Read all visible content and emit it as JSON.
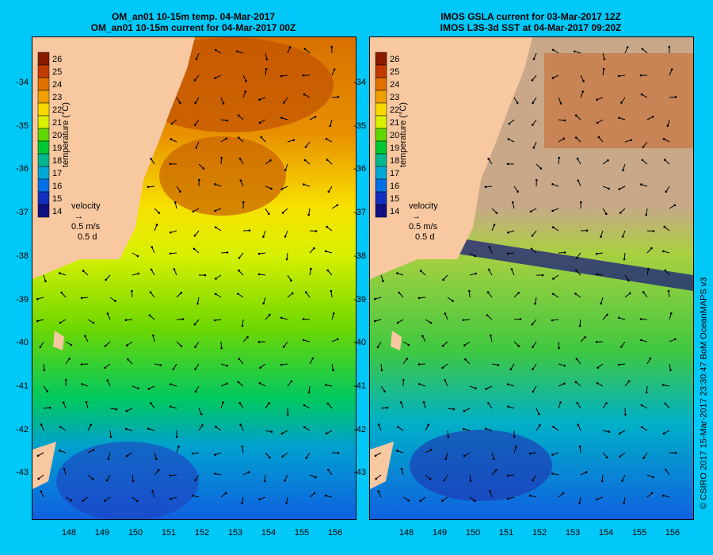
{
  "left_panel": {
    "title_line1": "OM_an01 10-15m temp. 04-Mar-2017",
    "title_line2": "OM_an01 10-15m current for 04-Mar-2017 00Z"
  },
  "right_panel": {
    "title_line1": "IMOS GSLA current for 03-Mar-2017 12Z",
    "title_line2": "IMOS L3S-3d SST at 04-Mar-2017 09:20Z"
  },
  "colorbar": {
    "ticks": [
      "26",
      "25",
      "24",
      "23",
      "22",
      "21",
      "20",
      "19",
      "18",
      "17",
      "16",
      "15",
      "14"
    ],
    "label": "temperature (°C)",
    "colors": [
      "#8a1a00",
      "#c23a00",
      "#e07000",
      "#f0a000",
      "#f8d800",
      "#d8f000",
      "#60d800",
      "#00c830",
      "#00b890",
      "#00a8d8",
      "#0070e8",
      "#1030c0",
      "#101080"
    ]
  },
  "velocity_key": {
    "title": "velocity",
    "speed": "0.5 m/s",
    "duration": "0.5 d"
  },
  "y_axis": [
    "-34",
    "-35",
    "-36",
    "-37",
    "-38",
    "-39",
    "-40",
    "-41",
    "-42",
    "-43"
  ],
  "x_axis": [
    "148",
    "149",
    "150",
    "151",
    "152",
    "153",
    "154",
    "155",
    "156"
  ],
  "credit": "© CSIRO 2017   15-Mar-2017 23:30:47 BoM OceanMAPS v3",
  "colors": {
    "background": "#00c8f8",
    "land": "#f8c8a0",
    "nodata": "#c8a888"
  }
}
